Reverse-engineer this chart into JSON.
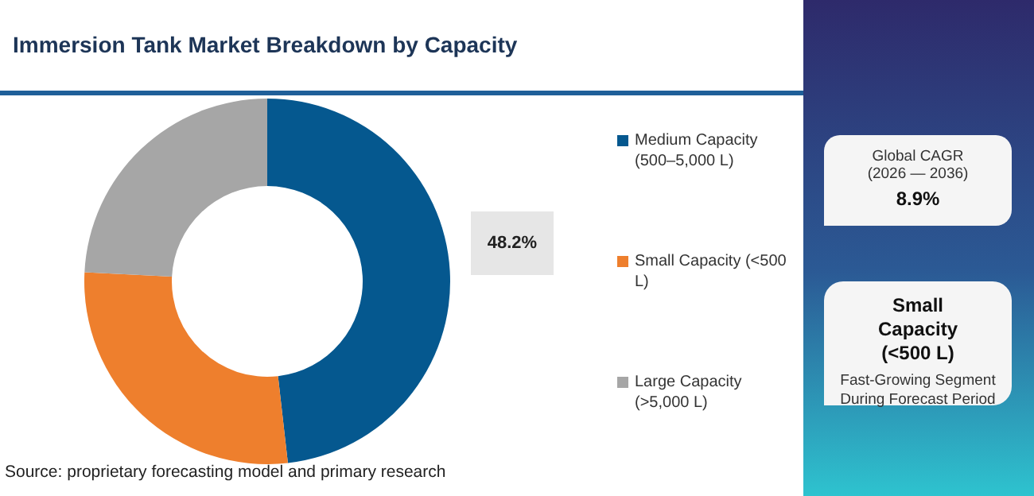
{
  "chart_data": {
    "type": "donut",
    "title": "Immersion Tank Market Breakdown by Capacity",
    "categories": [
      "Medium Capacity (500–5,000 L)",
      "Small Capacity (<500 L)",
      "Large Capacity (>5,000 L)"
    ],
    "values": [
      48.2,
      27.6,
      24.2
    ],
    "colors": [
      "#05588f",
      "#ee7f2d",
      "#a6a6a6"
    ],
    "value_labels": [
      "48.2%",
      null,
      null
    ],
    "legend": "right",
    "annotations": [
      "Source: proprietary forecasting model and primary research",
      "Global CAGR",
      "(2026 — 2036)",
      "8.9%",
      "Small Capacity (<500 L)",
      "Fast-Growing Segment During Forecast Period"
    ]
  }
}
